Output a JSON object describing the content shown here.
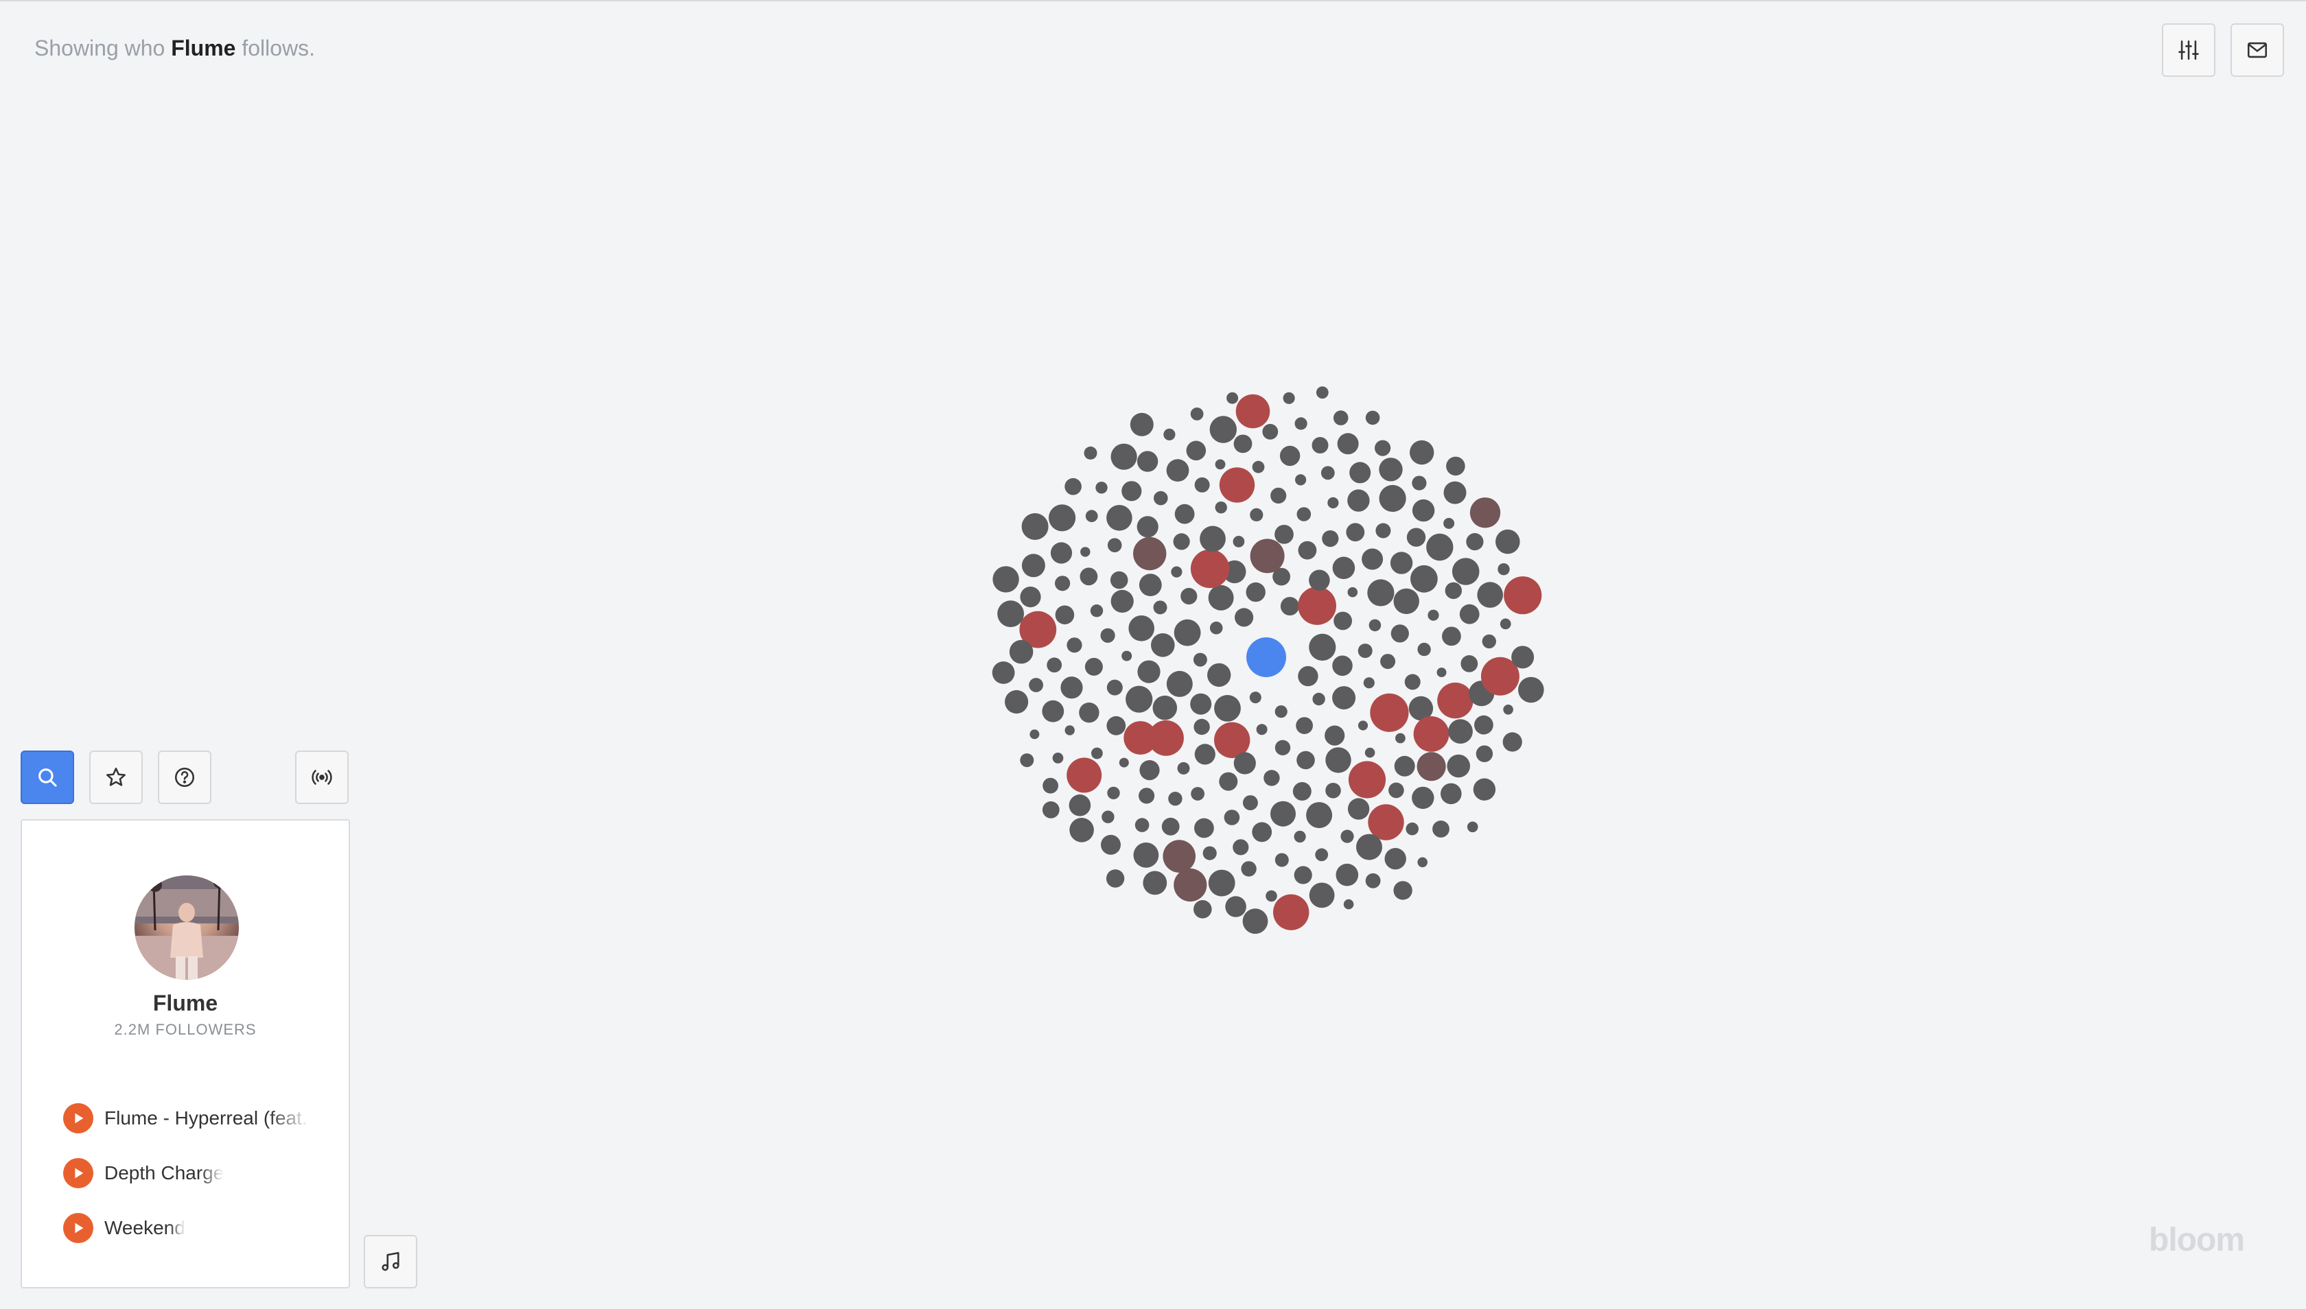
{
  "header": {
    "prefix": "Showing who",
    "artist": "Flume",
    "suffix": "follows."
  },
  "top_buttons": [
    {
      "name": "settings-sliders",
      "icon": "sliders-icon"
    },
    {
      "name": "mail",
      "icon": "mail-icon"
    }
  ],
  "toolbar": [
    {
      "name": "search",
      "icon": "search-icon",
      "active": true
    },
    {
      "name": "favorites",
      "icon": "star-icon",
      "active": false
    },
    {
      "name": "help",
      "icon": "help-circle-icon",
      "active": false
    },
    {
      "name": "broadcast",
      "icon": "broadcast-icon",
      "active": false
    }
  ],
  "profile": {
    "name": "Flume",
    "followers": "2.2M FOLLOWERS",
    "tracks": [
      {
        "title": "Flume - Hyperreal (feat. Kucka)"
      },
      {
        "title": "Depth Charge"
      },
      {
        "title": "Weekend"
      }
    ]
  },
  "music_button": {
    "icon": "music-note-icon"
  },
  "logo": "bloom",
  "colors": {
    "background": "#f3f4f6",
    "node_default": "#5c5c5e",
    "node_highlight": "#b04a4a",
    "node_muted_red": "#735658",
    "node_center": "#4b86ef",
    "accent_blue": "#4b86ef",
    "play_orange": "#e9602f"
  }
}
